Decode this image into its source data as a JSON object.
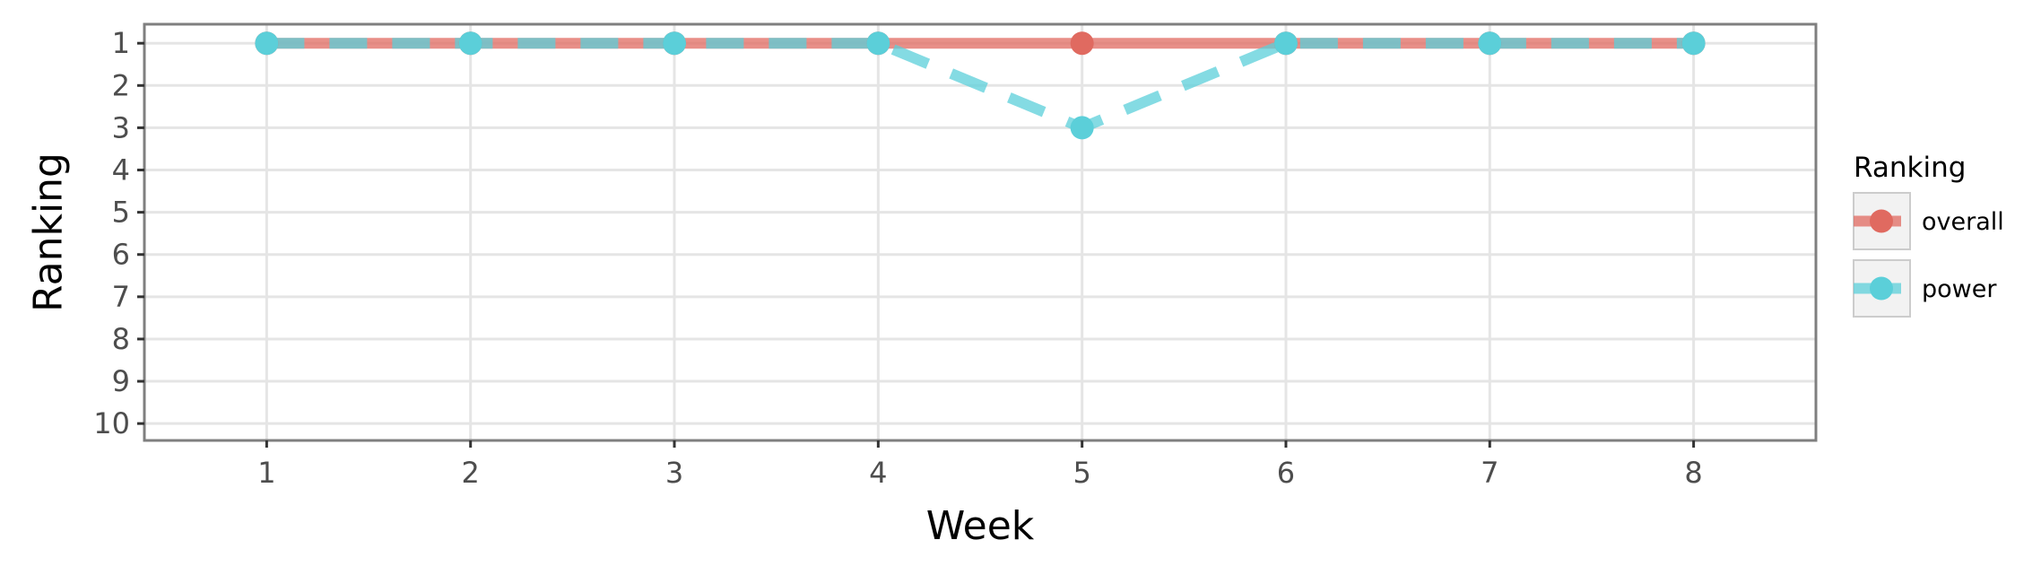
{
  "chart_data": {
    "type": "line",
    "xlabel": "Week",
    "ylabel": "Ranking",
    "x": [
      1,
      2,
      3,
      4,
      5,
      6,
      7,
      8
    ],
    "xlim": [
      0.4,
      8.6
    ],
    "ylim": [
      10.4,
      0.55
    ],
    "y_reversed": true,
    "xticks": [
      "1",
      "2",
      "3",
      "4",
      "5",
      "6",
      "7",
      "8"
    ],
    "yticks": [
      "1",
      "2",
      "3",
      "4",
      "5",
      "6",
      "7",
      "8",
      "9",
      "10"
    ],
    "grid": true,
    "legend": {
      "title": "Ranking",
      "position": "right"
    },
    "series": [
      {
        "name": "overall",
        "values": [
          1,
          1,
          1,
          1,
          1,
          1,
          1,
          1
        ],
        "color": "#e06a60",
        "linestyle": "solid"
      },
      {
        "name": "power",
        "values": [
          1,
          1,
          1,
          1,
          3,
          1,
          1,
          1
        ],
        "color": "#5bcfd9",
        "linestyle": "dashed"
      }
    ]
  }
}
